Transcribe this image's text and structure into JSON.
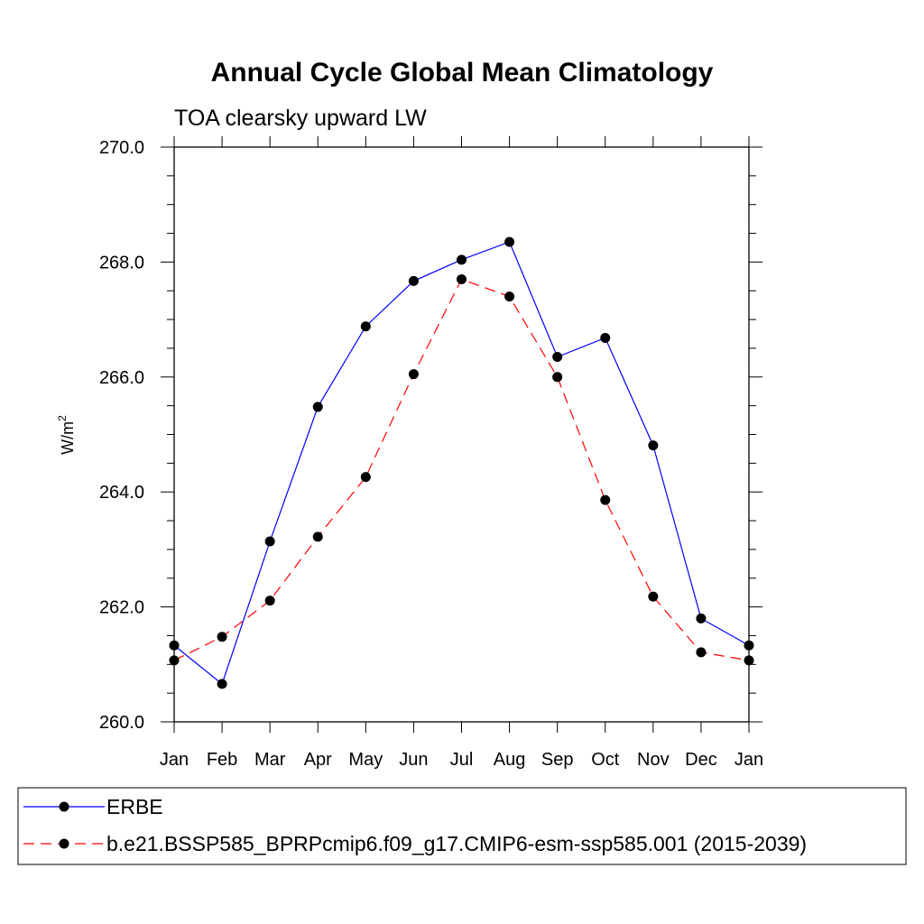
{
  "chart_data": {
    "type": "line",
    "title": "Annual Cycle Global Mean Climatology",
    "subtitle": "TOA clearsky upward LW",
    "ylabel": "W/m",
    "ylabel_sup": "2",
    "xlabel": "",
    "categories": [
      "Jan",
      "Feb",
      "Mar",
      "Apr",
      "May",
      "Jun",
      "Jul",
      "Aug",
      "Sep",
      "Oct",
      "Nov",
      "Dec",
      "Jan"
    ],
    "ylim": [
      260.0,
      270.0
    ],
    "yticks": [
      "260.0",
      "262.0",
      "264.0",
      "266.0",
      "268.0",
      "270.0"
    ],
    "series": [
      {
        "name": "ERBE",
        "color": "#0000ff",
        "dash": "solid",
        "values": [
          261.33,
          260.66,
          263.14,
          265.48,
          266.88,
          267.67,
          268.04,
          268.35,
          266.35,
          266.68,
          264.81,
          261.8,
          261.33
        ]
      },
      {
        "name": "b.e21.BSSP585_BPRPcmip6.f09_g17.CMIP6-esm-ssp585.001 (2015-2039)",
        "color": "#ff0000",
        "dash": "dashed",
        "values": [
          261.07,
          261.48,
          262.11,
          263.22,
          264.26,
          266.05,
          267.7,
          267.4,
          266.0,
          263.86,
          262.18,
          261.21,
          261.07
        ]
      }
    ],
    "legend": "bottom"
  }
}
